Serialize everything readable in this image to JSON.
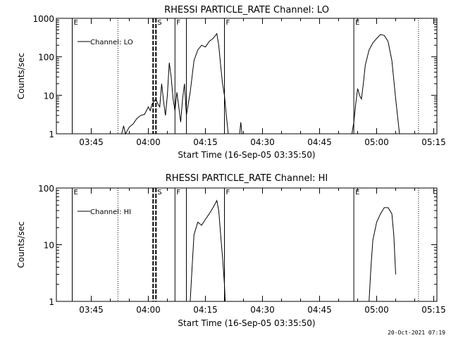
{
  "timestamp": "20-Oct-2021 07:19",
  "colors": {
    "line": "#000000",
    "background": "#ffffff"
  },
  "chart_data": [
    {
      "type": "line",
      "title": "RHESSI PARTICLE_RATE Channel: LO",
      "xlabel": "Start Time (16-Sep-05 03:35:50)",
      "ylabel": "Counts/sec",
      "y_scale": "log",
      "xlim": [
        "03:35:50",
        "05:15:50"
      ],
      "ylim": [
        1,
        1000
      ],
      "x_ticks": [
        "03:45",
        "04:00",
        "04:15",
        "04:30",
        "04:45",
        "05:00",
        "05:15"
      ],
      "y_ticks": [
        "1",
        "10",
        "100",
        "1000"
      ],
      "legend": {
        "label": "Channel: LO",
        "position": "top-left"
      },
      "markers": [
        {
          "time": "03:40",
          "label": "E",
          "style": "solid"
        },
        {
          "time": "03:52",
          "label": "",
          "style": "dotted"
        },
        {
          "time": "04:02",
          "label": "S",
          "style": "thick-dashed"
        },
        {
          "time": "04:07",
          "label": "F",
          "style": "solid"
        },
        {
          "time": "04:10",
          "label": "",
          "style": "solid"
        },
        {
          "time": "04:20",
          "label": "F",
          "style": "solid"
        },
        {
          "time": "04:54",
          "label": "E",
          "style": "solid"
        },
        {
          "time": "05:11",
          "label": "",
          "style": "dotted"
        }
      ],
      "series": [
        {
          "segments": [
            [
              [
                "03:53",
                1
              ],
              [
                "03:53.5",
                1.6
              ],
              [
                "03:54",
                1
              ],
              [
                "03:55",
                1.5
              ],
              [
                "03:56",
                1.8
              ],
              [
                "03:57",
                2.5
              ],
              [
                "03:58",
                3
              ],
              [
                "03:59",
                3.2
              ],
              [
                "04:00",
                5
              ],
              [
                "04:00.5",
                4
              ],
              [
                "04:01",
                6
              ],
              [
                "04:02",
                8
              ],
              [
                "04:02.5",
                6
              ],
              [
                "04:03",
                5
              ],
              [
                "04:03.5",
                20
              ],
              [
                "04:04",
                7
              ],
              [
                "04:04.5",
                3
              ],
              [
                "04:05",
                10
              ],
              [
                "04:05.5",
                70
              ],
              [
                "04:06",
                30
              ],
              [
                "04:06.5",
                8
              ],
              [
                "04:07",
                4
              ],
              [
                "04:07.5",
                12
              ],
              [
                "04:08",
                5
              ],
              [
                "04:08.5",
                2
              ],
              [
                "04:09",
                8
              ],
              [
                "04:09.5",
                20
              ],
              [
                "04:10",
                3
              ],
              [
                "04:10.5",
                6
              ],
              [
                "04:11",
                12
              ],
              [
                "04:12",
                80
              ],
              [
                "04:13",
                150
              ],
              [
                "04:14",
                200
              ],
              [
                "04:15",
                180
              ],
              [
                "04:16",
                250
              ],
              [
                "04:17",
                300
              ],
              [
                "04:18",
                400
              ],
              [
                "04:18.5",
                200
              ],
              [
                "04:19",
                60
              ],
              [
                "04:19.5",
                20
              ],
              [
                "04:20",
                10
              ],
              [
                "04:20.5",
                3
              ],
              [
                "04:21",
                1
              ]
            ],
            [
              [
                "04:24",
                1
              ],
              [
                "04:24.3",
                2
              ],
              [
                "04:24.6",
                1
              ]
            ],
            [
              [
                "04:53.5",
                1
              ],
              [
                "04:54",
                2
              ],
              [
                "04:54.5",
                6
              ],
              [
                "04:55",
                15
              ],
              [
                "04:55.5",
                10
              ],
              [
                "04:56",
                8
              ],
              [
                "04:56.5",
                20
              ],
              [
                "04:57",
                60
              ],
              [
                "04:58",
                150
              ],
              [
                "04:59",
                230
              ],
              [
                "05:00",
                300
              ],
              [
                "05:01",
                380
              ],
              [
                "05:02",
                360
              ],
              [
                "05:03",
                250
              ],
              [
                "05:04",
                80
              ],
              [
                "05:05",
                8
              ],
              [
                "05:06",
                1
              ]
            ]
          ]
        }
      ]
    },
    {
      "type": "line",
      "title": "RHESSI PARTICLE_RATE Channel: HI",
      "xlabel": "Start Time (16-Sep-05 03:35:50)",
      "ylabel": "Counts/sec",
      "y_scale": "log",
      "xlim": [
        "03:35:50",
        "05:15:50"
      ],
      "ylim": [
        1,
        100
      ],
      "x_ticks": [
        "03:45",
        "04:00",
        "04:15",
        "04:30",
        "04:45",
        "05:00",
        "05:15"
      ],
      "y_ticks": [
        "1",
        "10",
        "100"
      ],
      "legend": {
        "label": "Channel: HI",
        "position": "top-left"
      },
      "markers": [
        {
          "time": "03:40",
          "label": "E",
          "style": "solid"
        },
        {
          "time": "03:52",
          "label": "",
          "style": "dotted"
        },
        {
          "time": "04:02",
          "label": "S",
          "style": "thick-dashed"
        },
        {
          "time": "04:07",
          "label": "F",
          "style": "solid"
        },
        {
          "time": "04:10",
          "label": "",
          "style": "solid"
        },
        {
          "time": "04:20",
          "label": "F",
          "style": "solid"
        },
        {
          "time": "04:54",
          "label": "E",
          "style": "solid"
        },
        {
          "time": "05:11",
          "label": "",
          "style": "dotted"
        }
      ],
      "series": [
        {
          "segments": [
            [
              [
                "04:11",
                1
              ],
              [
                "04:11.5",
                4
              ],
              [
                "04:12",
                15
              ],
              [
                "04:13",
                25
              ],
              [
                "04:14",
                22
              ],
              [
                "04:15",
                28
              ],
              [
                "04:16",
                35
              ],
              [
                "04:17",
                45
              ],
              [
                "04:18",
                60
              ],
              [
                "04:18.5",
                40
              ],
              [
                "04:19",
                15
              ],
              [
                "04:19.5",
                6
              ],
              [
                "04:20",
                2
              ],
              [
                "04:20.2",
                1
              ]
            ],
            [
              [
                "04:58",
                1
              ],
              [
                "04:58.5",
                4
              ],
              [
                "04:59",
                12
              ],
              [
                "05:00",
                25
              ],
              [
                "05:01",
                35
              ],
              [
                "05:02",
                45
              ],
              [
                "05:03",
                45
              ],
              [
                "05:04",
                35
              ],
              [
                "05:04.5",
                15
              ],
              [
                "05:05",
                3
              ]
            ]
          ]
        }
      ]
    }
  ]
}
